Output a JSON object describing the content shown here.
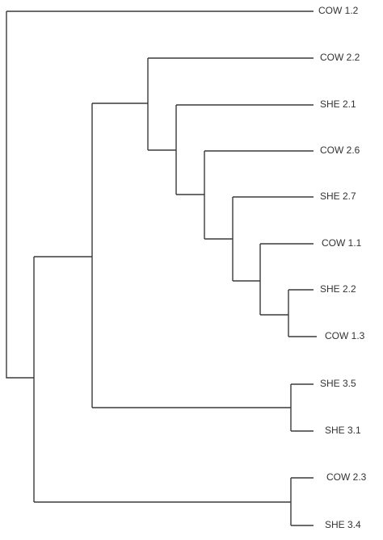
{
  "leaves": [
    "COW 1.2",
    "COW 2.2",
    "SHE 2.1",
    "COW 2.6",
    "SHE 2.7",
    "COW 1.1",
    "SHE 2.2",
    "COW 1.3",
    "SHE 3.5",
    "SHE 3.1",
    "COW 2.3",
    "SHE 3.4"
  ]
}
